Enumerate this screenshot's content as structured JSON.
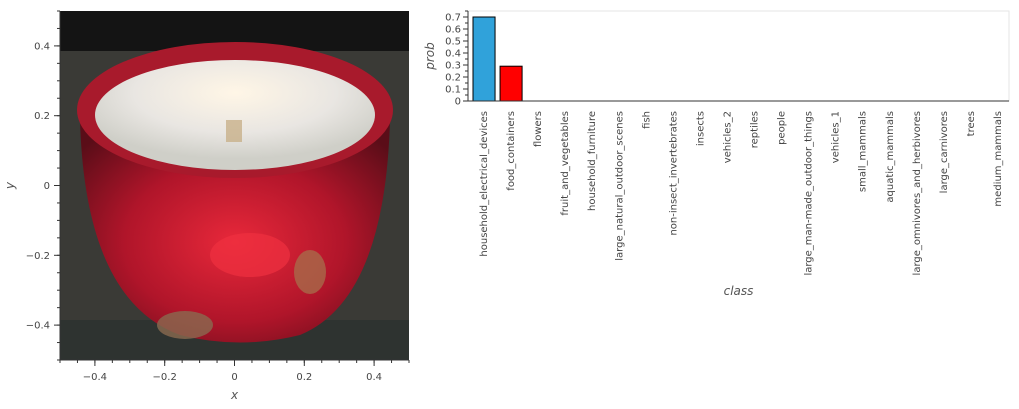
{
  "chart_data": [
    {
      "type": "image",
      "description_free": true,
      "xlabel": "x",
      "ylabel": "y",
      "xlim": [
        -0.5,
        0.5
      ],
      "ylim": [
        -0.5,
        0.5
      ],
      "x_ticks": [
        "−0.4",
        "−0.2",
        "0",
        "0.2",
        "0.4"
      ],
      "x_tick_values": [
        -0.4,
        -0.2,
        0,
        0.2,
        0.4
      ],
      "y_ticks": [
        "0.4",
        "0.2",
        "0",
        "−0.2",
        "−0.4"
      ],
      "y_tick_values": [
        0.4,
        0.2,
        0,
        -0.2,
        -0.4
      ]
    },
    {
      "type": "bar",
      "xlabel": "class",
      "ylabel": "prob",
      "ylim": [
        0,
        0.75
      ],
      "y_ticks": [
        "0",
        "0.1",
        "0.2",
        "0.3",
        "0.4",
        "0.5",
        "0.6",
        "0.7"
      ],
      "y_tick_values": [
        0,
        0.1,
        0.2,
        0.3,
        0.4,
        0.5,
        0.6,
        0.7
      ],
      "categories": [
        "household_electrical_devices",
        "food_containers",
        "flowers",
        "fruit_and_vegetables",
        "household_furniture",
        "large_natural_outdoor_scenes",
        "fish",
        "non-insect_invertebrates",
        "insects",
        "vehicles_2",
        "reptiles",
        "people",
        "large_man-made_outdoor_things",
        "vehicles_1",
        "small_mammals",
        "aquatic_mammals",
        "large_omnivores_and_herbivores",
        "large_carnivores",
        "trees",
        "medium_mammals"
      ],
      "values": [
        0.7,
        0.29,
        0,
        0,
        0,
        0,
        0,
        0,
        0,
        0,
        0,
        0,
        0,
        0,
        0,
        0,
        0,
        0,
        0,
        0
      ],
      "colors": [
        "#30a2da",
        "#ff0000",
        "#30a2da",
        "#30a2da",
        "#30a2da",
        "#30a2da",
        "#30a2da",
        "#30a2da",
        "#30a2da",
        "#30a2da",
        "#30a2da",
        "#30a2da",
        "#30a2da",
        "#30a2da",
        "#30a2da",
        "#30a2da",
        "#30a2da",
        "#30a2da",
        "#30a2da",
        "#30a2da"
      ]
    }
  ]
}
